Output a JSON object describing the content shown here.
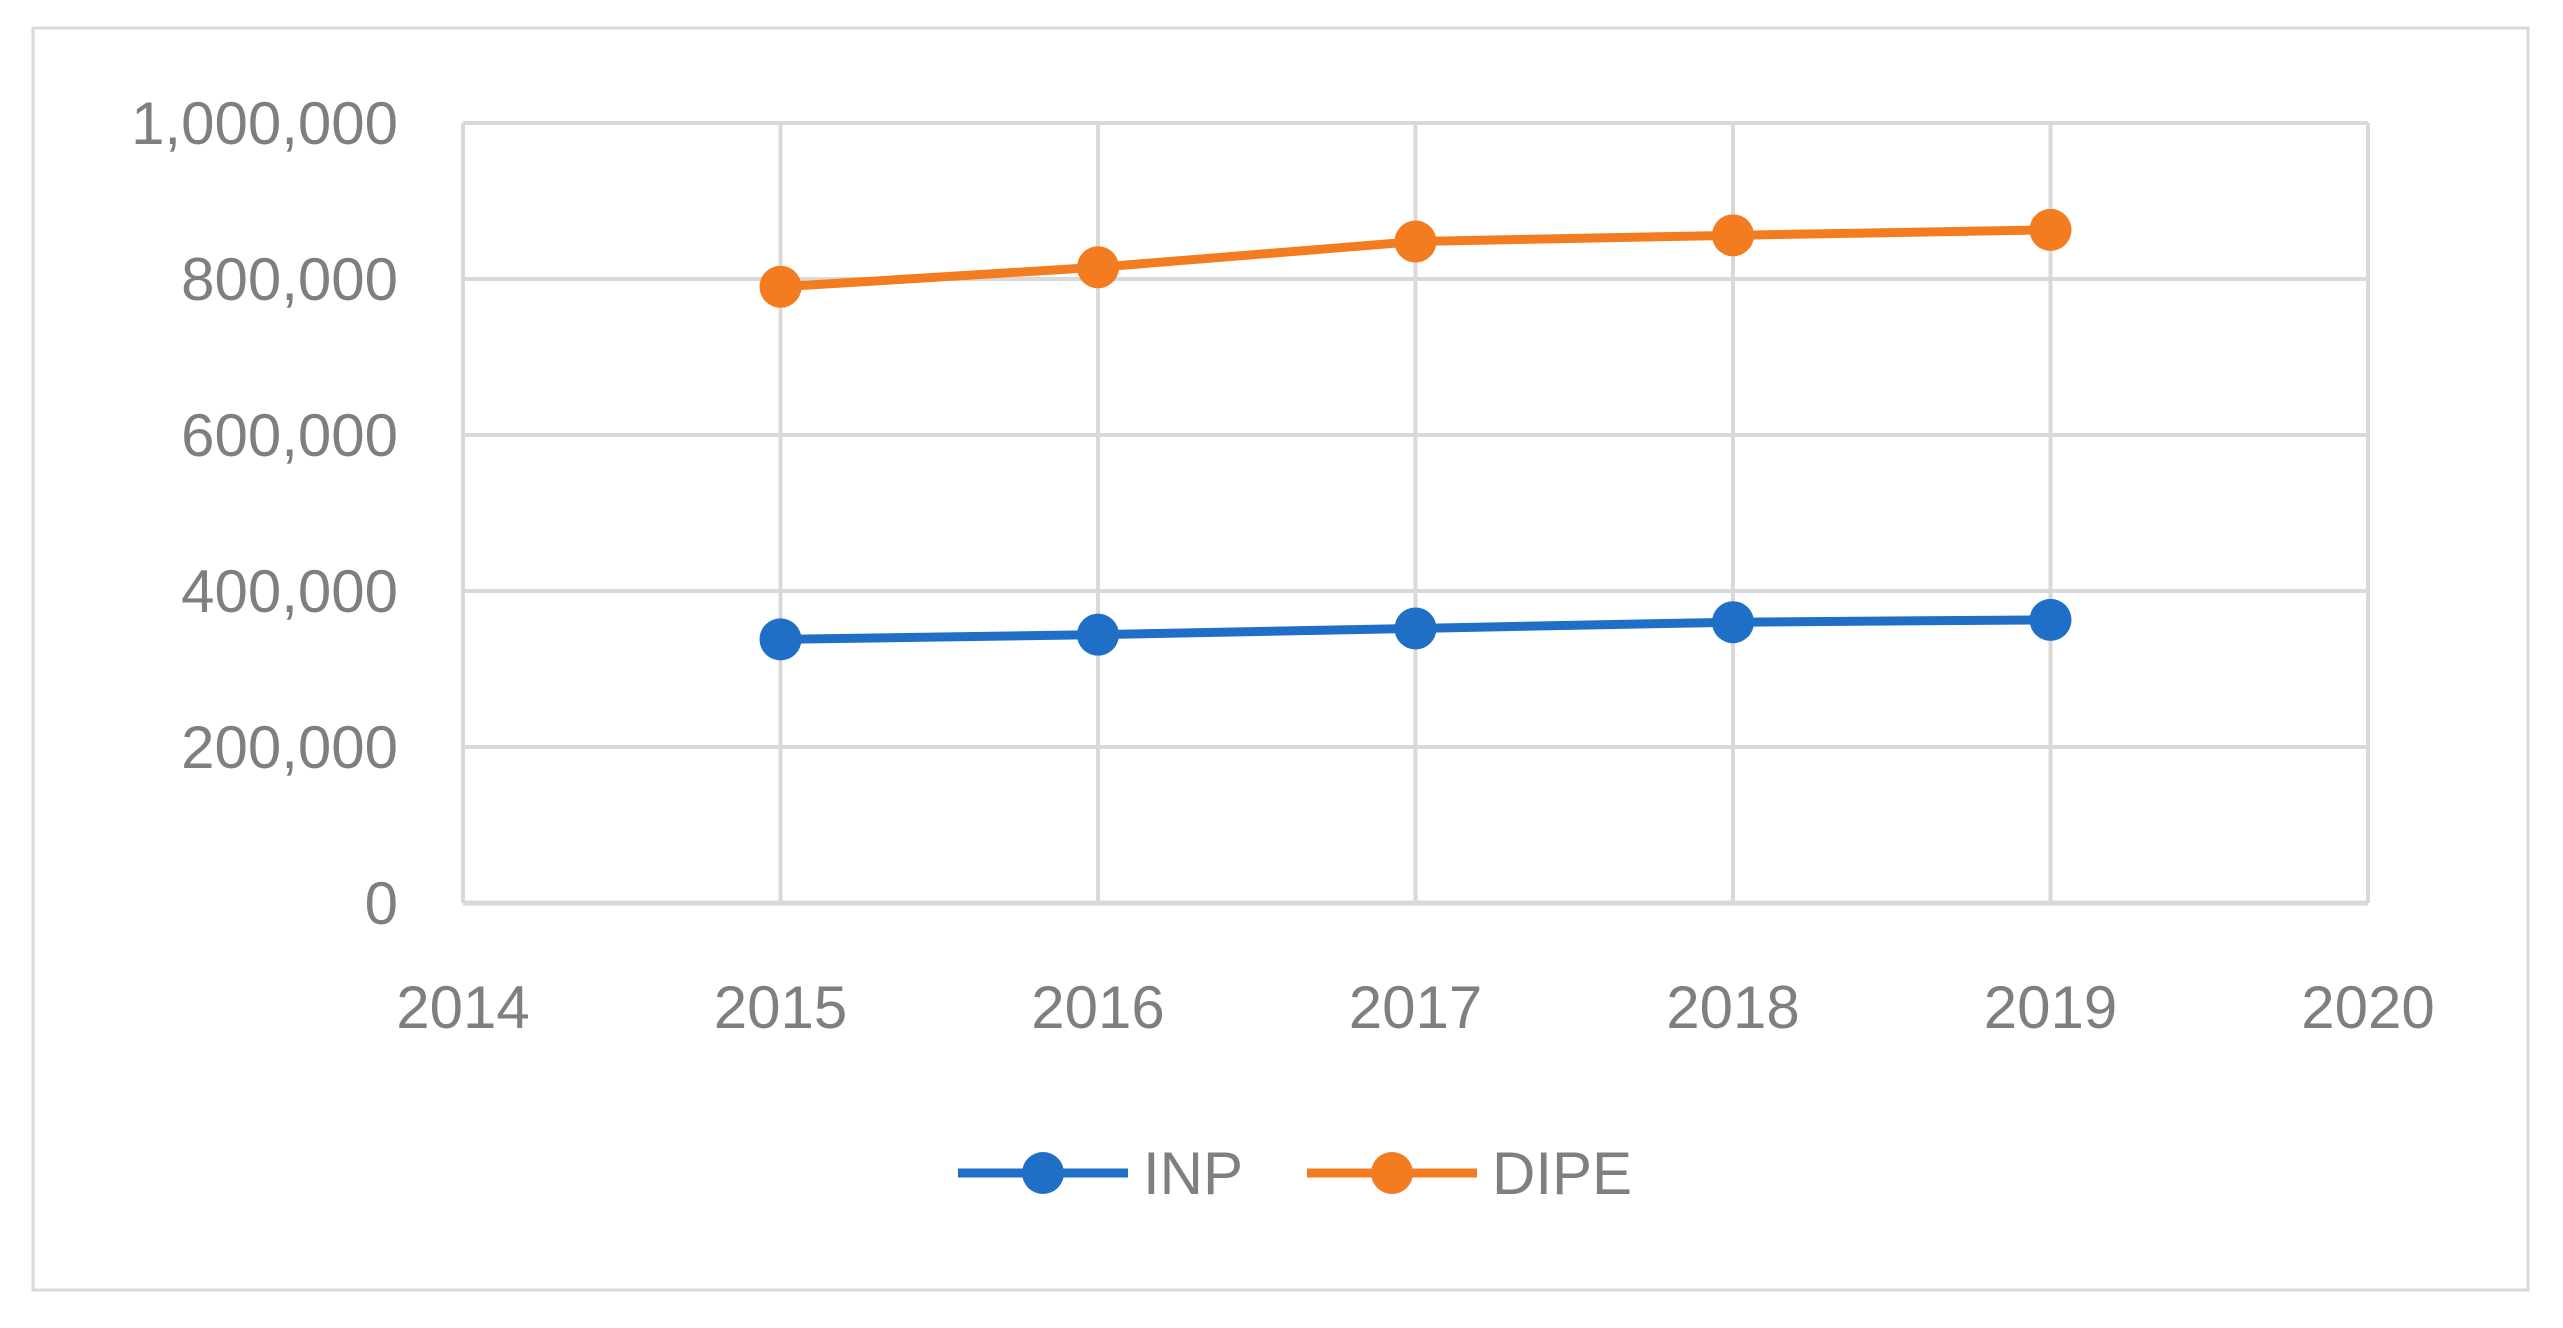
{
  "chart_data": {
    "type": "line",
    "title": "",
    "xlabel": "",
    "ylabel": "",
    "x": [
      2015,
      2016,
      2017,
      2018,
      2019
    ],
    "xlim": [
      2014,
      2020
    ],
    "x_ticks": [
      "2014",
      "2015",
      "2016",
      "2017",
      "2018",
      "2019",
      "2020"
    ],
    "ylim": [
      0,
      1000000
    ],
    "y_ticks": [
      "0",
      "200,000",
      "400,000",
      "600,000",
      "800,000",
      "1,000,000"
    ],
    "grid": true,
    "legend_position": "bottom",
    "series": [
      {
        "name": "INP",
        "color": "#1f6fc6",
        "values": [
          338000,
          344000,
          352000,
          360000,
          363000
        ]
      },
      {
        "name": "DIPE",
        "color": "#f47c20",
        "values": [
          790000,
          815000,
          848000,
          856000,
          863000
        ]
      }
    ]
  }
}
